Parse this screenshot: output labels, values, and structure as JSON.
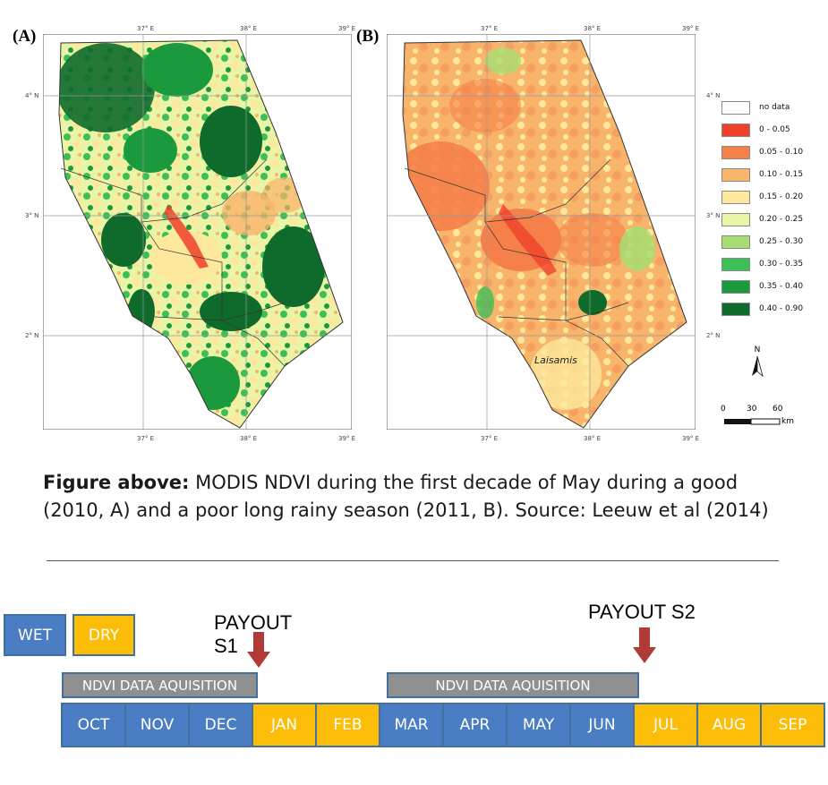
{
  "map_panels": [
    {
      "letter": "(A)",
      "season": "good",
      "year": "2010"
    },
    {
      "letter": "(B)",
      "season": "poor",
      "year": "2011",
      "place_label": "Laisamis"
    }
  ],
  "ticks": {
    "top": [
      "37° E",
      "38° E",
      "39° E"
    ],
    "bottom": [
      "37° E",
      "38° E",
      "39° E"
    ],
    "left": [
      "4° N",
      "3° N",
      "2° N"
    ],
    "right": [
      "4° N",
      "3° N",
      "2° N"
    ]
  },
  "legend": {
    "items": [
      {
        "label": "no data",
        "color": "#ffffff"
      },
      {
        "label": "0 - 0.05",
        "color": "#f0402a"
      },
      {
        "label": "0.05 - 0.10",
        "color": "#f5804a"
      },
      {
        "label": "0.10 - 0.15",
        "color": "#f9b46b"
      },
      {
        "label": "0.15 - 0.20",
        "color": "#fde89d"
      },
      {
        "label": "0.20 - 0.25",
        "color": "#e9f4a6"
      },
      {
        "label": "0.25 - 0.30",
        "color": "#a6dd72"
      },
      {
        "label": "0.30 - 0.35",
        "color": "#3cbf54"
      },
      {
        "label": "0.35 - 0.40",
        "color": "#1a9a3d"
      },
      {
        "label": "0.40 - 0.90",
        "color": "#0f6b2c"
      }
    ],
    "north_label": "N",
    "scale": {
      "labels": [
        "0",
        "30",
        "60"
      ],
      "unit": "km"
    }
  },
  "caption": {
    "lead": "Figure above:",
    "text": " MODIS NDVI during the first decade of May during a good (2010, A) and a poor long rainy season (2011, B). Source: Leeuw et al (2014)"
  },
  "timeline": {
    "legend": {
      "wet": "WET",
      "dry": "DRY"
    },
    "payout_s1_line1": "PAYOUT",
    "payout_s1_line2": "S1",
    "payout_s2": "PAYOUT S2",
    "acquisition_label": "NDVI DATA AQUISITION",
    "months": [
      {
        "name": "OCT",
        "season": "wet"
      },
      {
        "name": "NOV",
        "season": "wet"
      },
      {
        "name": "DEC",
        "season": "wet"
      },
      {
        "name": "JAN",
        "season": "dry"
      },
      {
        "name": "FEB",
        "season": "dry"
      },
      {
        "name": "MAR",
        "season": "wet"
      },
      {
        "name": "APR",
        "season": "wet"
      },
      {
        "name": "MAY",
        "season": "wet"
      },
      {
        "name": "JUN",
        "season": "wet"
      },
      {
        "name": "JUL",
        "season": "dry"
      },
      {
        "name": "AUG",
        "season": "dry"
      },
      {
        "name": "SEP",
        "season": "dry"
      }
    ],
    "colors": {
      "wet": "#4a7dc4",
      "dry": "#fbbd07",
      "acquisition": "#8f8f8f",
      "arrow": "#b03b36"
    }
  }
}
